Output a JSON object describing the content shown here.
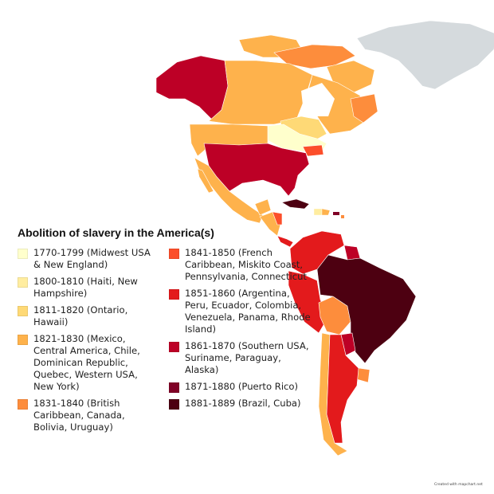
{
  "title": "Abolition of slavery in the America(s)",
  "legend": {
    "left": [
      {
        "label": "1770-1799 (Midwest USA & New England)",
        "color": "#ffffcc"
      },
      {
        "label": "1800-1810 (Haiti, New Hampshire)",
        "color": "#ffeda0"
      },
      {
        "label": "1811-1820 (Ontario, Hawaii)",
        "color": "#fed976"
      },
      {
        "label": "1821-1830 (Mexico, Central America, Chile, Dominican Republic, Quebec, Western USA, New York)",
        "color": "#feb24c"
      },
      {
        "label": "1831-1840 (British Caribbean, Canada, Bolivia, Uruguay)",
        "color": "#fd8d3c"
      }
    ],
    "right": [
      {
        "label": "1841-1850 (French Caribbean, Miskito Coast, Pennsylvania, Connecticut",
        "color": "#fc4e2a"
      },
      {
        "label": "1851-1860 (Argentina, Peru, Ecuador, Colombia, Venezuela, Panama, Rhode Island)",
        "color": "#e31a1c"
      },
      {
        "label": "1861-1870 (Southern USA, Suriname, Paraguay, Alaska)",
        "color": "#bd0026"
      },
      {
        "label": "1871-1880 (Puerto Rico)",
        "color": "#800026"
      },
      {
        "label": "1881-1889 (Brazil, Cuba)",
        "color": "#4d0011"
      }
    ]
  },
  "colors": {
    "no_data": "#d5dadd",
    "c1770": "#ffffcc",
    "c1800": "#ffeda0",
    "c1811": "#fed976",
    "c1821": "#feb24c",
    "c1831": "#fd8d3c",
    "c1841": "#fc4e2a",
    "c1851": "#e31a1c",
    "c1861": "#bd0026",
    "c1871": "#800026",
    "c1881": "#4d0011"
  },
  "credit": "Created with mapchart.net"
}
